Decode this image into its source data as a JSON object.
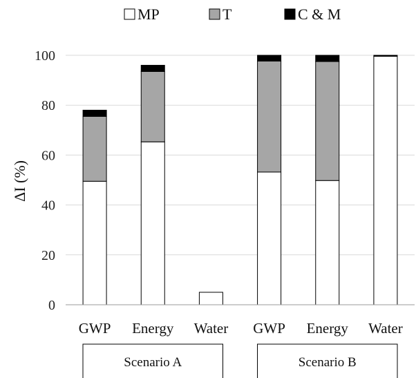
{
  "chart_data": {
    "type": "bar",
    "stacked": true,
    "ylabel": "ΔI (%)",
    "ylim": [
      0,
      100
    ],
    "yticks": [
      0,
      20,
      40,
      60,
      80,
      100
    ],
    "grid": true,
    "legend_position": "top",
    "categories": [
      "GWP",
      "Energy",
      "Water",
      "GWP",
      "Energy",
      "Water"
    ],
    "groups": [
      {
        "label": "Scenario A",
        "categories": [
          0,
          1,
          2
        ]
      },
      {
        "label": "Scenario B",
        "categories": [
          3,
          4,
          5
        ]
      }
    ],
    "series": [
      {
        "name": "MP",
        "color": "#ffffff",
        "values": [
          49.5,
          65.3,
          5.0,
          53.2,
          49.8,
          99.6
        ]
      },
      {
        "name": "T",
        "color": "#a6a6a6",
        "values": [
          26.0,
          28.2,
          0.0,
          44.5,
          47.7,
          0.0
        ]
      },
      {
        "name": "C & M",
        "color": "#000000",
        "values": [
          2.5,
          2.5,
          0.0,
          2.3,
          2.5,
          0.4
        ]
      }
    ]
  }
}
